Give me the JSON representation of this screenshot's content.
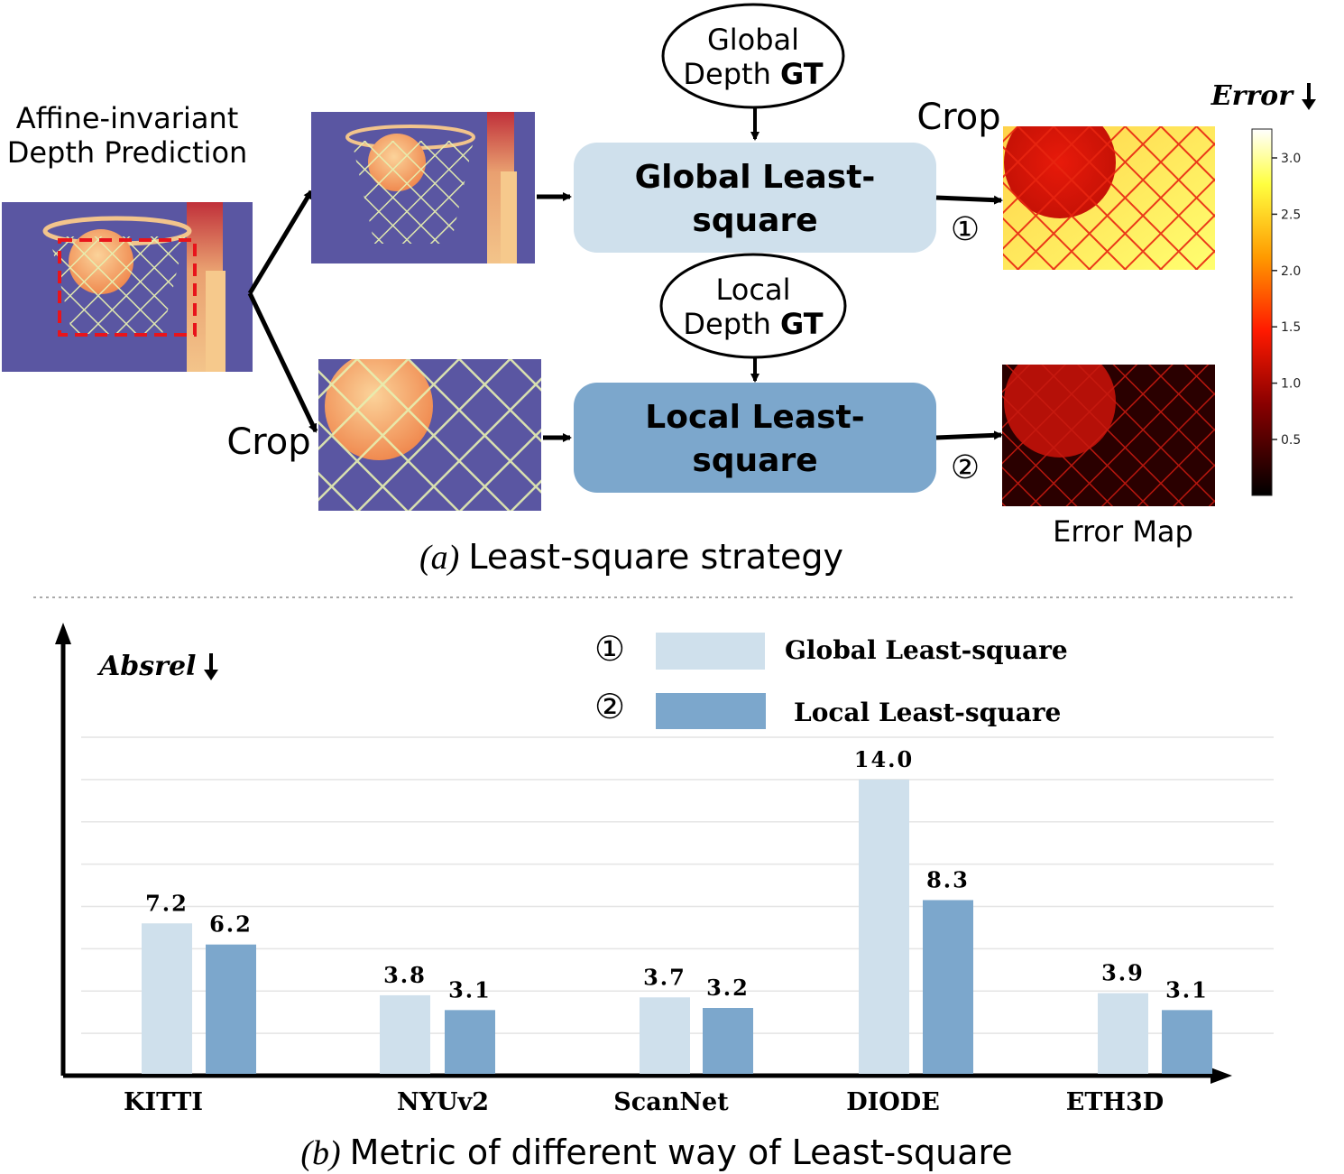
{
  "part_a": {
    "input_label_line1": "Affine-invariant",
    "input_label_line2": "Depth Prediction",
    "crop_label_top": "Crop",
    "crop_label_bottom": "Crop",
    "global_gt_line1": "Global",
    "global_gt_line2_prefix": "Depth ",
    "global_gt_line2_bold": "GT",
    "local_gt_line1": "Local",
    "local_gt_line2_prefix": "Depth ",
    "local_gt_line2_bold": "GT",
    "global_box_line1": "Global Least-",
    "global_box_line2": "square",
    "local_box_line1": "Local Least-",
    "local_box_line2": "square",
    "marker_1": "①",
    "marker_2": "②",
    "error_label": "Error",
    "error_map_label": "Error Map",
    "colorbar_ticks": [
      "3.0",
      "2.5",
      "2.0",
      "1.5",
      "1.0",
      "0.5"
    ],
    "caption_letter": "(a)",
    "caption_text": "Least-square strategy",
    "colors": {
      "global_box": "#cfe0ec",
      "local_box": "#7ca7cc",
      "depth_bg": "#5a56a2",
      "dash": "#e8141b"
    }
  },
  "part_b": {
    "ylabel": "Absrel",
    "legend": [
      {
        "marker": "①",
        "label": "Global Least-square",
        "color": "#cfe0ec"
      },
      {
        "marker": "②",
        "label": "Local Least-square",
        "color": "#7ca7cc"
      }
    ],
    "caption_letter": "(b)",
    "caption_text": "Metric of different way of Least-square"
  },
  "chart_data": {
    "type": "bar",
    "categories": [
      "KITTI",
      "NYUv2",
      "ScanNet",
      "DIODE",
      "ETH3D"
    ],
    "series": [
      {
        "name": "Global Least-square",
        "values": [
          7.2,
          3.8,
          3.7,
          14.0,
          3.9
        ],
        "labels": [
          "7.2",
          "3.8",
          "3.7",
          "14.0",
          "3.9"
        ]
      },
      {
        "name": "Local Least-square",
        "values": [
          6.2,
          3.1,
          3.2,
          8.3,
          3.1
        ],
        "labels": [
          "6.2",
          "3.1",
          "3.2",
          "8.3",
          "3.1"
        ]
      }
    ],
    "ylabel": "Absrel",
    "ylim": [
      0,
      16
    ],
    "grid": true,
    "legend_position": "top-right"
  }
}
